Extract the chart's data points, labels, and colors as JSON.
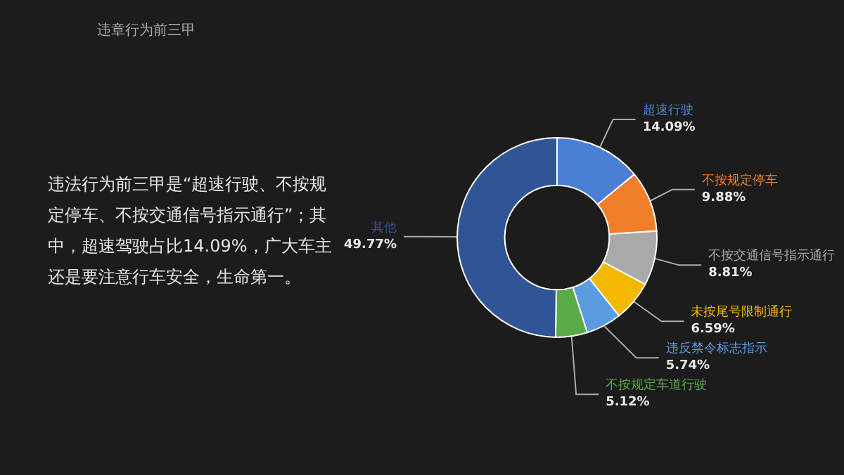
{
  "chart_data": {
    "type": "donut",
    "title": "违章行为前三甲",
    "categories": [
      "超速行驶",
      "不按规定停车",
      "不按交通信号指示通行",
      "未按尾号限制通行",
      "违反禁令标志指示",
      "不按规定车道行驶",
      "其他"
    ],
    "values": [
      14.09,
      9.88,
      8.81,
      6.59,
      5.74,
      5.12,
      49.77
    ],
    "value_labels": [
      "14.09%",
      "9.88%",
      "8.81%",
      "6.59%",
      "5.74%",
      "5.12%",
      "49.77%"
    ],
    "colors": [
      "#4a7fd4",
      "#f07f2a",
      "#a9a9a9",
      "#f5b800",
      "#5b9be0",
      "#5aaa46",
      "#2f5597"
    ],
    "annotations": [
      "违法行为前三甲是“超速行驶、不按规定停车、不按交通信号指示通行”；其中，超速驾驶占比14.09%，广大车主还是要注意行车安全，生命第一。"
    ]
  }
}
